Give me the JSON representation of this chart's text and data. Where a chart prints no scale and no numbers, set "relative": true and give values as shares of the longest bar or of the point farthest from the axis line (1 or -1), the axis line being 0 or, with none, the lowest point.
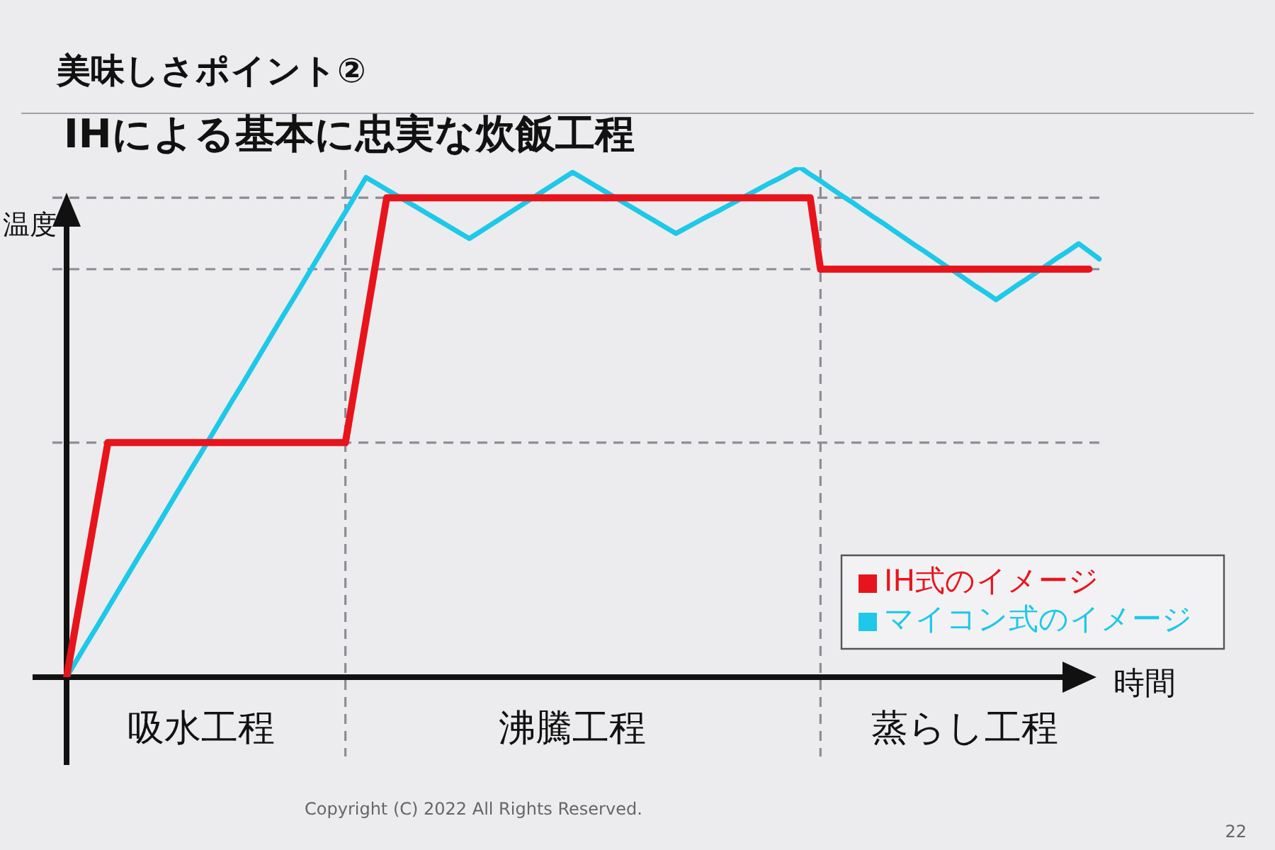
{
  "chart_data": {
    "type": "line",
    "title": "美味しさポイント②",
    "subtitle": "IHによる基本に忠実な炊飯工程",
    "xlabel": "時間",
    "ylabel": "温度",
    "relative": true,
    "categories": [
      null,
      null,
      null,
      null,
      null,
      null,
      null,
      null,
      null,
      null,
      null,
      null,
      null,
      "吸水工程",
      null,
      null,
      null,
      null,
      null,
      null,
      null,
      null,
      null,
      null,
      null,
      null,
      null,
      null,
      null,
      null,
      null,
      null,
      null,
      null,
      null,
      null,
      null,
      null,
      null,
      null,
      null,
      null,
      null,
      null,
      null,
      null,
      null,
      null,
      null,
      "沸騰工程",
      null,
      null,
      null,
      null,
      null,
      null,
      null,
      null,
      null,
      null,
      null,
      null,
      null,
      null,
      null,
      null,
      null,
      null,
      null,
      null,
      null,
      null,
      null,
      null,
      null,
      null,
      null,
      null,
      null,
      null,
      null,
      null,
      null,
      null,
      null,
      null,
      null,
      "蒸らし工程",
      null,
      null,
      null,
      null,
      null,
      null,
      null,
      null,
      null,
      null,
      null,
      null,
      null
    ],
    "tick_labels": "x",
    "legend": "bottom right",
    "series": [
      {
        "name": "IH式のイメージ",
        "color": "#e8141c",
        "values": [
          0,
          0.115,
          0.23,
          0.345,
          0.46,
          0.46,
          0.46,
          0.46,
          0.46,
          0.46,
          0.46,
          0.46,
          0.46,
          0.46,
          0.46,
          0.46,
          0.46,
          0.46,
          0.46,
          0.46,
          0.46,
          0.46,
          0.46,
          0.46,
          0.46,
          0.46,
          0.46,
          0.46,
          0.58,
          0.7,
          0.82,
          0.94,
          0.94,
          0.94,
          0.94,
          0.94,
          0.94,
          0.94,
          0.94,
          0.94,
          0.94,
          0.94,
          0.94,
          0.94,
          0.94,
          0.94,
          0.94,
          0.94,
          0.94,
          0.94,
          0.94,
          0.94,
          0.94,
          0.94,
          0.94,
          0.94,
          0.94,
          0.94,
          0.94,
          0.94,
          0.94,
          0.94,
          0.94,
          0.94,
          0.94,
          0.94,
          0.94,
          0.94,
          0.94,
          0.94,
          0.94,
          0.94,
          0.94,
          0.8,
          0.8,
          0.8,
          0.8,
          0.8,
          0.8,
          0.8,
          0.8,
          0.8,
          0.8,
          0.8,
          0.8,
          0.8,
          0.8,
          0.8,
          0.8,
          0.8,
          0.8,
          0.8,
          0.8,
          0.8,
          0.8,
          0.8,
          0.8,
          0.8,
          0.8,
          0.8,
          null
        ]
      },
      {
        "name": "マイコン式のイメージ",
        "color": "#1ec8e8",
        "values": [
          0,
          0.034,
          0.068,
          0.101,
          0.135,
          0.169,
          0.203,
          0.237,
          0.27,
          0.304,
          0.338,
          0.372,
          0.406,
          0.439,
          0.473,
          0.507,
          0.541,
          0.574,
          0.608,
          0.642,
          0.676,
          0.71,
          0.743,
          0.777,
          0.811,
          0.845,
          0.879,
          0.912,
          0.946,
          0.98,
          0.968,
          0.956,
          0.944,
          0.932,
          0.92,
          0.908,
          0.896,
          0.884,
          0.872,
          0.86,
          0.873,
          0.886,
          0.899,
          0.912,
          0.925,
          0.938,
          0.951,
          0.964,
          0.977,
          0.99,
          0.978,
          0.966,
          0.954,
          0.942,
          0.93,
          0.918,
          0.906,
          0.894,
          0.882,
          0.87,
          0.881,
          0.892,
          0.903,
          0.913,
          0.924,
          0.935,
          0.946,
          0.957,
          0.968,
          0.978,
          0.989,
          1,
          0.986,
          0.973,
          0.959,
          0.945,
          0.932,
          0.918,
          0.904,
          0.891,
          0.877,
          0.863,
          0.849,
          0.836,
          0.822,
          0.808,
          0.795,
          0.781,
          0.767,
          0.754,
          0.74,
          0.754,
          0.768,
          0.781,
          0.795,
          0.809,
          0.823,
          0.836,
          0.85,
          0.835,
          0.82
        ]
      }
    ],
    "ref_lines": [
      {
        "axis": "y",
        "value": 0.94,
        "color": "#8c8c96",
        "line_style": "dashed"
      },
      {
        "axis": "y",
        "value": 0.8,
        "color": "#8c8c96",
        "line_style": "dashed"
      },
      {
        "axis": "y",
        "value": 0.46,
        "color": "#8c8c96",
        "line_style": "dashed"
      }
    ],
    "annotations": [
      "Copyright (C) 2022 All Rights Reserved.",
      "22"
    ]
  }
}
